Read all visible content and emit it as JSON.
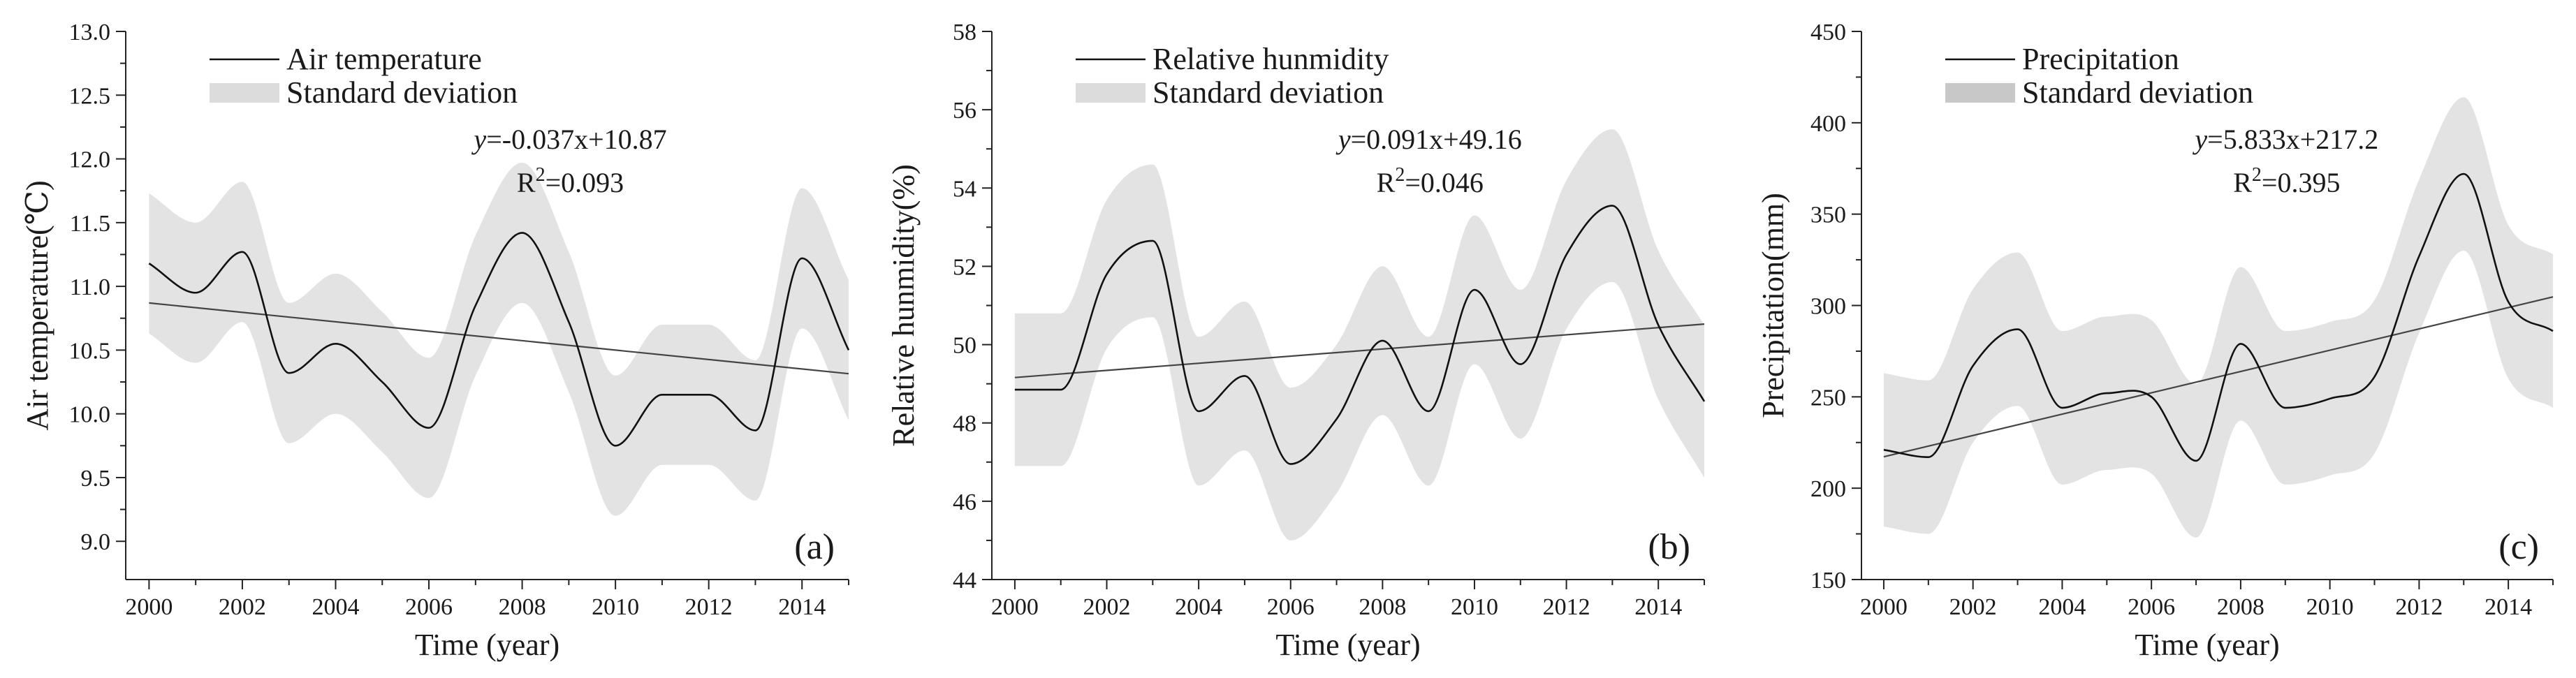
{
  "chart_data": [
    {
      "type": "line",
      "panel_label": "(a)",
      "xlabel": "Time (year)",
      "ylabel": "Air temperature(℃)",
      "xlim": [
        1999.5,
        2015.0
      ],
      "ylim": [
        8.7,
        13.0
      ],
      "x_ticks": [
        2000,
        2002,
        2004,
        2006,
        2008,
        2010,
        2012,
        2014
      ],
      "y_ticks": [
        9.0,
        9.5,
        10.0,
        10.5,
        11.0,
        11.5,
        12.0,
        12.5,
        13.0
      ],
      "y_decimals": 1,
      "legend": {
        "line": "Air temperature",
        "band": "Standard deviation",
        "position": "top-left"
      },
      "equation": {
        "prefix": "y",
        "rhs": "=-0.037x+10.87",
        "r2_base": "R",
        "r2_exp": "2",
        "r2_value": "=0.093"
      },
      "trend": {
        "slope": -0.037,
        "intercept": 10.87
      },
      "x": [
        2000,
        2001,
        2002,
        2003,
        2004,
        2005,
        2006,
        2007,
        2008,
        2009,
        2010,
        2011,
        2012,
        2013,
        2014,
        2015
      ],
      "series": [
        {
          "name": "Air temperature",
          "values": [
            11.18,
            10.95,
            11.27,
            10.32,
            10.55,
            10.25,
            9.89,
            10.85,
            11.42,
            10.72,
            9.75,
            10.15,
            10.15,
            9.87,
            11.22,
            10.5
          ]
        },
        {
          "name": "Standard deviation upper",
          "values": [
            11.73,
            11.5,
            11.82,
            10.87,
            11.1,
            10.8,
            10.44,
            11.4,
            11.97,
            11.27,
            10.3,
            10.7,
            10.7,
            10.42,
            11.77,
            11.05
          ]
        },
        {
          "name": "Standard deviation lower",
          "values": [
            10.63,
            10.4,
            10.72,
            9.77,
            10.0,
            9.7,
            9.34,
            10.3,
            10.87,
            10.17,
            9.2,
            9.6,
            9.6,
            9.32,
            10.67,
            9.95
          ]
        }
      ]
    },
    {
      "type": "line",
      "panel_label": "(b)",
      "xlabel": "Time (year)",
      "ylabel": "Relative hunmidity(%)",
      "xlim": [
        1999.5,
        2015.0
      ],
      "ylim": [
        44,
        58
      ],
      "x_ticks": [
        2000,
        2002,
        2004,
        2006,
        2008,
        2010,
        2012,
        2014
      ],
      "y_ticks": [
        44,
        46,
        48,
        50,
        52,
        54,
        56,
        58
      ],
      "y_decimals": 0,
      "legend": {
        "line": "Relative hunmidity",
        "band": "Standard deviation",
        "position": "top-left"
      },
      "equation": {
        "prefix": "y",
        "rhs": "=0.091x+49.16",
        "r2_base": "R",
        "r2_exp": "2",
        "r2_value": "=0.046"
      },
      "trend": {
        "slope": 0.091,
        "intercept": 49.16
      },
      "x": [
        2000,
        2001,
        2002,
        2003,
        2004,
        2005,
        2006,
        2007,
        2008,
        2009,
        2010,
        2011,
        2012,
        2013,
        2014,
        2015
      ],
      "series": [
        {
          "name": "Relative hunmidity",
          "values": [
            48.85,
            48.85,
            51.8,
            52.65,
            48.3,
            49.2,
            46.95,
            48.1,
            50.1,
            48.3,
            51.4,
            49.5,
            52.3,
            53.55,
            50.5,
            48.55
          ]
        },
        {
          "name": "Standard deviation upper",
          "values": [
            50.8,
            50.8,
            53.7,
            54.6,
            50.2,
            51.1,
            48.9,
            50.0,
            52.0,
            50.2,
            53.3,
            51.4,
            54.2,
            55.5,
            52.4,
            50.5
          ]
        },
        {
          "name": "Standard deviation lower",
          "values": [
            46.9,
            46.9,
            49.9,
            50.7,
            46.4,
            47.3,
            45.0,
            46.2,
            48.2,
            46.4,
            49.5,
            47.6,
            50.4,
            51.6,
            48.6,
            46.6
          ]
        }
      ]
    },
    {
      "type": "line",
      "panel_label": "(c)",
      "xlabel": "Time (year)",
      "ylabel": "Precipitation(mm)",
      "xlim": [
        1999.5,
        2015.0
      ],
      "ylim": [
        150,
        450
      ],
      "x_ticks": [
        2000,
        2002,
        2004,
        2006,
        2008,
        2010,
        2012,
        2014
      ],
      "y_ticks": [
        150,
        200,
        250,
        300,
        350,
        400,
        450
      ],
      "y_decimals": 0,
      "legend": {
        "line": "Precipitation",
        "band": "Standard deviation",
        "position": "top-left"
      },
      "equation": {
        "prefix": "y",
        "rhs": "=5.833x+217.2",
        "r2_base": "R",
        "r2_exp": "2",
        "r2_value": "=0.395"
      },
      "trend": {
        "slope": 5.833,
        "intercept": 217.2
      },
      "x": [
        2000,
        2001,
        2002,
        2003,
        2004,
        2005,
        2006,
        2007,
        2008,
        2009,
        2010,
        2011,
        2012,
        2013,
        2014,
        2015
      ],
      "series": [
        {
          "name": "Precipitation",
          "values": [
            221,
            217,
            267,
            287,
            244,
            252,
            250,
            215,
            279,
            244,
            249,
            261,
            327,
            372,
            302,
            286
          ]
        },
        {
          "name": "Standard deviation upper",
          "values": [
            263,
            259,
            309,
            329,
            286,
            294,
            292,
            257,
            321,
            286,
            291,
            303,
            369,
            414,
            344,
            328
          ]
        },
        {
          "name": "Standard deviation lower",
          "values": [
            179,
            175,
            225,
            245,
            202,
            210,
            208,
            173,
            237,
            202,
            207,
            219,
            285,
            330,
            260,
            244
          ]
        }
      ]
    }
  ]
}
